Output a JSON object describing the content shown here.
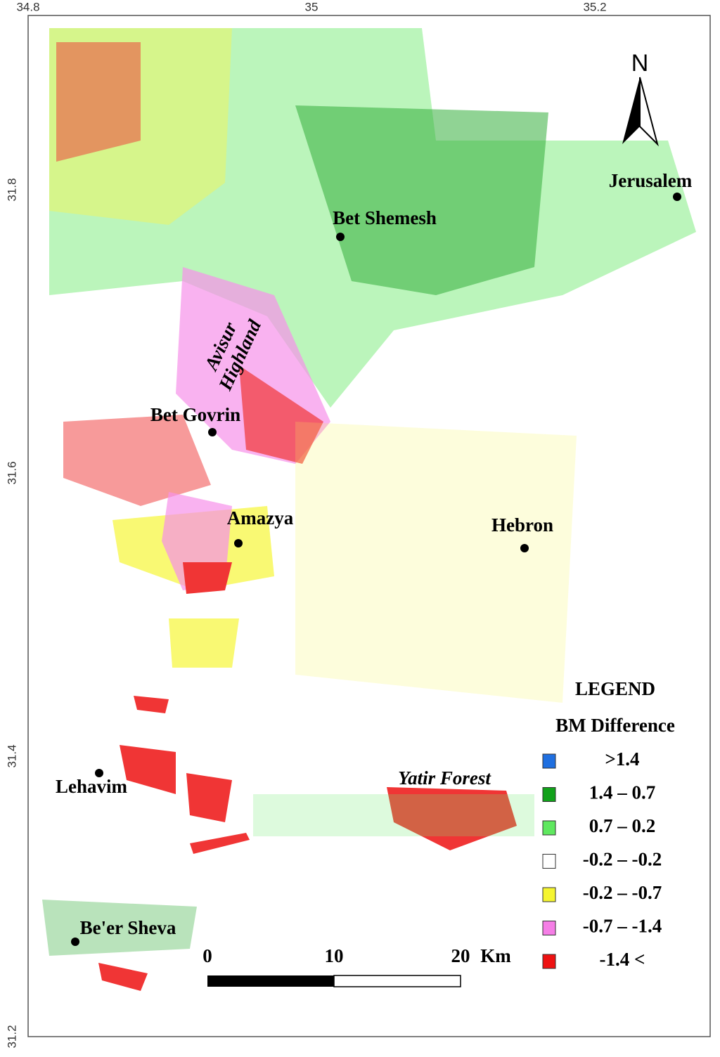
{
  "map": {
    "lon_ticks": [
      34.8,
      35,
      35.2
    ],
    "lat_ticks": [
      31.8,
      31.6,
      31.4,
      31.2
    ],
    "north": "N",
    "places": [
      {
        "name": "Jerusalem"
      },
      {
        "name": "Bet Shemesh"
      },
      {
        "name": "Bet Govrin"
      },
      {
        "name": "Amazya"
      },
      {
        "name": "Hebron"
      },
      {
        "name": "Lehavim"
      },
      {
        "name": "Be'er Sheva"
      }
    ],
    "regions": [
      {
        "lines": [
          "Avisur",
          "Highland"
        ]
      },
      {
        "lines": [
          "Yatir Forest"
        ]
      }
    ],
    "legend": {
      "title": "LEGEND",
      "subtitle": "BM Difference",
      "items": [
        {
          "label": ">1.4",
          "color": "#1f6fe0"
        },
        {
          "label": "1.4 – 0.7",
          "color": "#11a11a"
        },
        {
          "label": "0.7 – 0.2",
          "color": "#5fe85f"
        },
        {
          "label": "-0.2 – -0.2",
          "color": "#ffffff"
        },
        {
          "label": "-0.2 – -0.7",
          "color": "#f5f530"
        },
        {
          "label": "-0.7 – -1.4",
          "color": "#f57ee6"
        },
        {
          "label": "-1.4 <",
          "color": "#ee1111"
        }
      ]
    },
    "scale": {
      "labels": [
        "0",
        "10",
        "20"
      ],
      "unit": "Km"
    }
  }
}
